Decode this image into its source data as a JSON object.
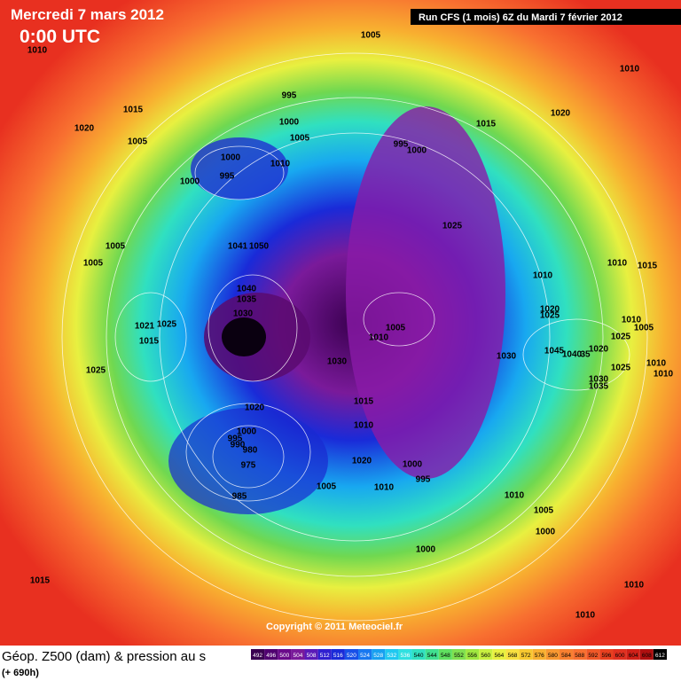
{
  "header": {
    "date": "Mercredi 7 mars 2012",
    "time": "0:00 UTC",
    "run": "Run CFS (1 mois) 6Z du Mardi 7 février 2012"
  },
  "isobar_labels": [
    "1005",
    "1010",
    "1010",
    "995",
    "1015",
    "1020",
    "1020",
    "1000",
    "1005",
    "1015",
    "1005",
    "995",
    "1000",
    "1000",
    "1010",
    "995",
    "1000",
    "1025",
    "1005",
    "1041",
    "1050",
    "1005",
    "1010",
    "1015",
    "1010",
    "1040",
    "1035",
    "1030",
    "1020",
    "1025",
    "1010",
    "1021",
    "1025",
    "1005",
    "1005",
    "1010",
    "1025",
    "1015",
    "1020",
    "1045",
    "1040",
    "35",
    "1030",
    "1030",
    "1025",
    "1010",
    "1010",
    "1025",
    "1030",
    "1035",
    "1015",
    "1020",
    "1010",
    "1000",
    "995",
    "990",
    "980",
    "1020",
    "975",
    "1000",
    "995",
    "1005",
    "1010",
    "985",
    "1010",
    "1005",
    "1000",
    "1000",
    "1015",
    "1010",
    "1010"
  ],
  "copyright": "Copyright © 2011 Meteociel.fr",
  "footer": {
    "title": "Géop. Z500 (dam) & pression au s",
    "lead": "(+ 690h)"
  },
  "scale": [
    "492",
    "496",
    "500",
    "504",
    "508",
    "512",
    "516",
    "520",
    "524",
    "528",
    "532",
    "536",
    "540",
    "544",
    "548",
    "552",
    "556",
    "560",
    "564",
    "568",
    "572",
    "576",
    "580",
    "584",
    "588",
    "592",
    "596",
    "600",
    "604",
    "608",
    "612"
  ]
}
